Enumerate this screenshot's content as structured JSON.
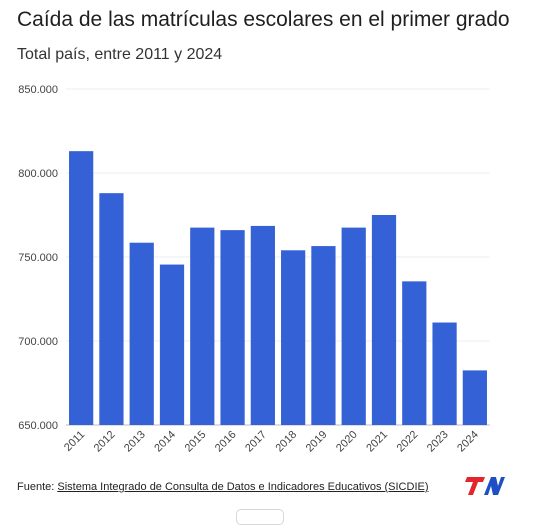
{
  "header": {
    "title": "Caída de las matrículas escolares en el primer grado",
    "subtitle": "Total país, entre 2011 y 2024"
  },
  "source": {
    "prefix": "Fuente: ",
    "link_text": "Sistema Integrado de Consulta de Datos e Indicadores Educativos (SICDIE)"
  },
  "logo": {
    "name": "TN",
    "colors": {
      "red": "#e3262b",
      "blue": "#1f4fc4"
    }
  },
  "chart_data": {
    "type": "bar",
    "categories": [
      "2011",
      "2012",
      "2013",
      "2014",
      "2015",
      "2016",
      "2017",
      "2018",
      "2019",
      "2020",
      "2021",
      "2022",
      "2023",
      "2024"
    ],
    "values": [
      813000,
      788000,
      758500,
      745500,
      767500,
      766000,
      768500,
      754000,
      756500,
      767500,
      775000,
      735500,
      711000,
      682500
    ],
    "ylim": [
      650000,
      850000
    ],
    "yticks": [
      650000,
      700000,
      750000,
      800000,
      850000
    ],
    "ytick_labels": [
      "650.000",
      "700.000",
      "750.000",
      "800.000",
      "850.000"
    ],
    "bar_color": "#3561d6",
    "grid": true
  }
}
